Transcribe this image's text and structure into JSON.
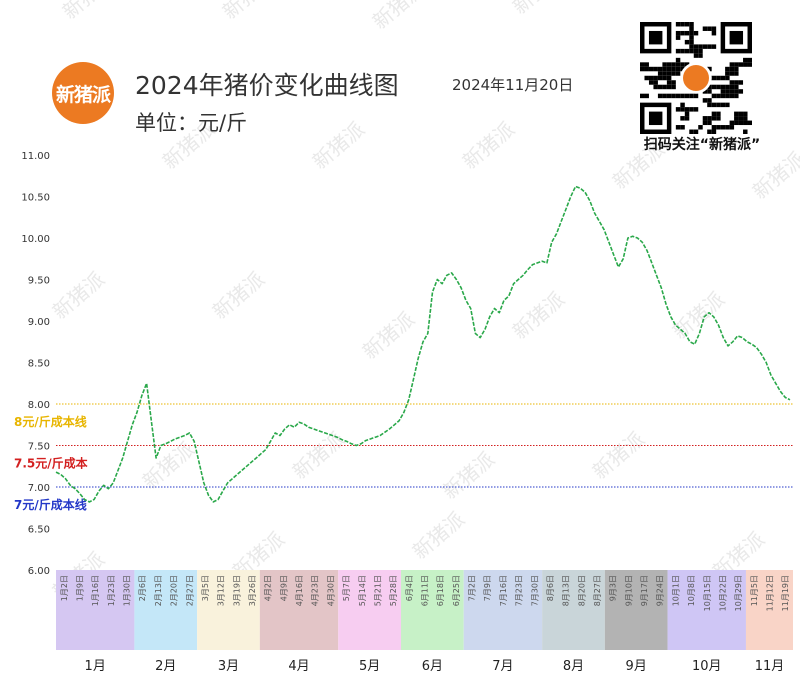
{
  "header": {
    "logo_text": "新猪派",
    "title": "2024年猪价变化曲线图",
    "date": "2024年11月20日",
    "unit": "单位：元/斤",
    "qr_caption": "扫码关注“新猪派”",
    "watermark_text": "新猪派"
  },
  "chart_data": {
    "type": "line",
    "title": "2024年猪价变化曲线图",
    "ylabel": "单位：元/斤",
    "ylim": [
      6.0,
      11.0
    ],
    "yticks": [
      "11.00",
      "10.50",
      "10.00",
      "9.50",
      "9.00",
      "8.50",
      "8.00",
      "7.50",
      "7.00",
      "6.50",
      "6.00"
    ],
    "line_color": "#2aa84a",
    "grid": false,
    "reference_lines": [
      {
        "value": 8.0,
        "label": "8元/斤成本线",
        "color": "#e8b500"
      },
      {
        "value": 7.5,
        "label": "7.5元/斤成本",
        "color": "#d32020"
      },
      {
        "value": 7.0,
        "label": "7元/斤成本线",
        "color": "#2438c8"
      }
    ],
    "months": [
      {
        "label": "1月",
        "color": "#d5c7f2",
        "dates": [
          "1月2日",
          "1月9日",
          "1月16日",
          "1月23日",
          "1月30日"
        ]
      },
      {
        "label": "2月",
        "color": "#c4e7f8",
        "dates": [
          "2月6日",
          "2月13日",
          "2月20日",
          "2月27日"
        ]
      },
      {
        "label": "3月",
        "color": "#f9f2dc",
        "dates": [
          "3月5日",
          "3月12日",
          "3月19日",
          "3月26日"
        ]
      },
      {
        "label": "4月",
        "color": "#e3c5c7",
        "dates": [
          "4月2日",
          "4月9日",
          "4月16日",
          "4月23日",
          "4月30日"
        ]
      },
      {
        "label": "5月",
        "color": "#f7cdf1",
        "dates": [
          "5月7日",
          "5月14日",
          "5月21日",
          "5月28日"
        ]
      },
      {
        "label": "6月",
        "color": "#c7f1c7",
        "dates": [
          "6月4日",
          "6月11日",
          "6月18日",
          "6月25日"
        ]
      },
      {
        "label": "7月",
        "color": "#cdd8ee",
        "dates": [
          "7月2日",
          "7月9日",
          "7月16日",
          "7月23日",
          "7月30日"
        ]
      },
      {
        "label": "8月",
        "color": "#c9d5d9",
        "dates": [
          "8月6日",
          "8月13日",
          "8月20日",
          "8月27日"
        ]
      },
      {
        "label": "9月",
        "color": "#b3b3b3",
        "dates": [
          "9月3日",
          "9月10日",
          "9月17日",
          "9月24日"
        ]
      },
      {
        "label": "10月",
        "color": "#cfc6f5",
        "dates": [
          "10月1日",
          "10月8日",
          "10月15日",
          "10月22日",
          "10月29日"
        ]
      },
      {
        "label": "11月",
        "color": "#f9d4c7",
        "dates": [
          "11月5日",
          "11月12日",
          "11月19日"
        ]
      }
    ],
    "series": [
      {
        "values": [
          7.18,
          7.15,
          7.1,
          7.02,
          6.98,
          6.92,
          6.85,
          6.82,
          6.85,
          6.95,
          7.02,
          6.98,
          7.05,
          7.2,
          7.35,
          7.55,
          7.75,
          7.9,
          8.1,
          8.25,
          7.8,
          7.35,
          7.5,
          7.52,
          7.55,
          7.58,
          7.6,
          7.62,
          7.65,
          7.55,
          7.3,
          7.05,
          6.9,
          6.82,
          6.85,
          6.95,
          7.05,
          7.1,
          7.15,
          7.2,
          7.25,
          7.3,
          7.35,
          7.4,
          7.45,
          7.55,
          7.65,
          7.62,
          7.7,
          7.75,
          7.72,
          7.78,
          7.76,
          7.72,
          7.7,
          7.68,
          7.66,
          7.64,
          7.62,
          7.6,
          7.57,
          7.55,
          7.52,
          7.5,
          7.52,
          7.56,
          7.58,
          7.6,
          7.62,
          7.66,
          7.7,
          7.75,
          7.8,
          7.9,
          8.05,
          8.3,
          8.55,
          8.75,
          8.85,
          9.35,
          9.5,
          9.45,
          9.55,
          9.58,
          9.5,
          9.4,
          9.25,
          9.15,
          8.85,
          8.8,
          8.9,
          9.05,
          9.15,
          9.1,
          9.25,
          9.3,
          9.45,
          9.5,
          9.55,
          9.62,
          9.68,
          9.7,
          9.72,
          9.7,
          9.95,
          10.05,
          10.2,
          10.35,
          10.5,
          10.62,
          10.6,
          10.55,
          10.45,
          10.3,
          10.2,
          10.1,
          9.95,
          9.8,
          9.65,
          9.75,
          10.0,
          10.02,
          10.0,
          9.95,
          9.85,
          9.7,
          9.55,
          9.4,
          9.2,
          9.05,
          8.95,
          8.9,
          8.85,
          8.75,
          8.72,
          8.85,
          9.05,
          9.1,
          9.05,
          8.95,
          8.8,
          8.7,
          8.75,
          8.82,
          8.8,
          8.75,
          8.72,
          8.68,
          8.6,
          8.5,
          8.35,
          8.25,
          8.15,
          8.08,
          8.05
        ]
      }
    ]
  }
}
